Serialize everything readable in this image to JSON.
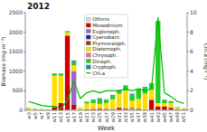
{
  "chart_data": {
    "type": "bar",
    "stacked": true,
    "title": "2012",
    "xlabel": "Week",
    "ylabel": "Biomass (mg·m⁻³)",
    "y2label": "Chl.a (mg·l⁻¹)",
    "categories": [
      "w3",
      "w5",
      "w7",
      "w9",
      "w11",
      "w13",
      "w15",
      "w17",
      "w19",
      "w21",
      "w23",
      "w25",
      "w27",
      "w29",
      "w31",
      "w33",
      "w35",
      "w37",
      "w39",
      "w41",
      "w43",
      "w45",
      "w47",
      "w49",
      "w51"
    ],
    "ylim": [
      0,
      2500
    ],
    "yticks": [
      0,
      500,
      1000,
      1500,
      2000,
      2500
    ],
    "y2lim": [
      0,
      10
    ],
    "y2ticks": [
      0,
      2,
      4,
      6,
      8,
      10
    ],
    "grid": false,
    "legend": "upper center",
    "series": [
      {
        "name": "Others",
        "color": "#d8d8d8",
        "type": "bar",
        "values": [
          15,
          5,
          5,
          5,
          5,
          5,
          15,
          20,
          10,
          10,
          10,
          15,
          15,
          20,
          20,
          20,
          30,
          20,
          20,
          15,
          15,
          15,
          20,
          8,
          5
        ]
      },
      {
        "name": "Mesodinium",
        "color": "#cc0000",
        "type": "bar",
        "values": [
          0,
          0,
          0,
          0,
          80,
          180,
          1900,
          120,
          0,
          15,
          25,
          15,
          15,
          0,
          40,
          8,
          8,
          8,
          0,
          250,
          80,
          80,
          40,
          8,
          4
        ]
      },
      {
        "name": "Euglenoph.",
        "color": "#9966cc",
        "type": "bar",
        "values": [
          0,
          0,
          0,
          0,
          0,
          0,
          0,
          850,
          0,
          0,
          0,
          0,
          0,
          0,
          0,
          0,
          0,
          0,
          0,
          0,
          0,
          0,
          0,
          0,
          0
        ]
      },
      {
        "name": "Cyanobact.",
        "color": "#2020aa",
        "type": "bar",
        "values": [
          0,
          0,
          0,
          0,
          0,
          0,
          0,
          0,
          0,
          0,
          0,
          0,
          0,
          0,
          0,
          0,
          0,
          0,
          0,
          0,
          0,
          0,
          0,
          0,
          0
        ]
      },
      {
        "name": "Prymnesioph.",
        "color": "#884400",
        "type": "bar",
        "values": [
          0,
          0,
          0,
          0,
          0,
          0,
          0,
          15,
          0,
          0,
          0,
          15,
          8,
          15,
          15,
          25,
          25,
          15,
          8,
          8,
          8,
          8,
          8,
          4,
          4
        ]
      },
      {
        "name": "Diatomoph.",
        "color": "#ffdd00",
        "type": "bar",
        "values": [
          40,
          25,
          15,
          8,
          800,
          700,
          80,
          150,
          40,
          150,
          150,
          120,
          150,
          250,
          350,
          450,
          180,
          250,
          400,
          250,
          80,
          80,
          120,
          40,
          25
        ]
      },
      {
        "name": "Chrysoph.",
        "color": "#ee66aa",
        "type": "bar",
        "values": [
          0,
          0,
          0,
          0,
          0,
          0,
          0,
          0,
          0,
          0,
          0,
          0,
          0,
          0,
          0,
          0,
          0,
          0,
          0,
          0,
          0,
          0,
          0,
          0,
          0
        ]
      },
      {
        "name": "Dinoph.",
        "color": "#22cc22",
        "type": "bar",
        "values": [
          8,
          8,
          4,
          4,
          40,
          40,
          25,
          80,
          8,
          40,
          80,
          120,
          80,
          80,
          80,
          120,
          160,
          250,
          160,
          160,
          2100,
          80,
          40,
          15,
          8
        ]
      },
      {
        "name": "Cryptoph.",
        "color": "#009999",
        "type": "bar",
        "values": [
          4,
          4,
          4,
          4,
          15,
          15,
          8,
          40,
          4,
          8,
          15,
          25,
          15,
          25,
          15,
          15,
          25,
          15,
          15,
          15,
          8,
          8,
          8,
          4,
          4
        ]
      },
      {
        "name": "Chl.a",
        "color": "#00bb00",
        "type": "line",
        "axis": "y2",
        "values": [
          0.9,
          0.7,
          0.5,
          0.4,
          0.4,
          0.2,
          1.0,
          3.0,
          1.2,
          1.8,
          2.0,
          1.8,
          2.0,
          2.0,
          2.0,
          2.2,
          2.0,
          2.2,
          2.0,
          2.2,
          9.5,
          1.8,
          1.4,
          0.9,
          0.7
        ]
      }
    ]
  }
}
